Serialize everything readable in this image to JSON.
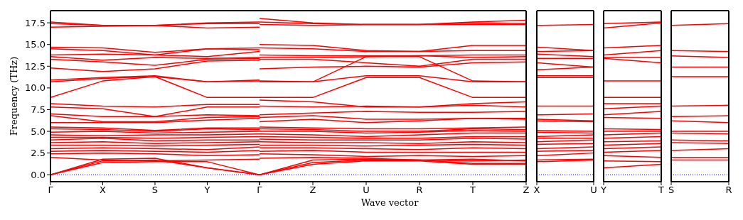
{
  "chart_data": [
    {
      "type": "line",
      "ylabel": "Frequency (THz)",
      "color": "#ff0000",
      "categories": [
        "Γ",
        "X",
        "S",
        "Y",
        "Γ"
      ],
      "ylim": [
        -0.8,
        18.9
      ],
      "yticks": [
        {
          "value": 0,
          "label": "0.0"
        },
        2.5,
        {
          "value": 5,
          "label": "5.0"
        },
        7.5,
        {
          "value": 10,
          "label": "10.0"
        },
        12.5,
        {
          "value": 15,
          "label": "15.0"
        },
        17.5
      ],
      "ref_lines": [
        {
          "axis": "y",
          "value": 0,
          "color": "#0000ff",
          "line_style": "dotted"
        }
      ],
      "series": [
        {
          "values": [
            17.6,
            17.2,
            17.2,
            17.5,
            17.6
          ]
        },
        {
          "values": [
            17.4,
            17.2,
            17.2,
            17.4,
            17.4
          ]
        },
        {
          "values": [
            17.0,
            17.1,
            17.2,
            16.9,
            17.0
          ]
        },
        {
          "values": [
            14.7,
            14.6,
            14.1,
            14.5,
            14.6
          ]
        },
        {
          "values": [
            14.5,
            14.3,
            13.8,
            14.5,
            14.4
          ]
        },
        {
          "values": [
            13.8,
            13.9,
            13.8,
            13.6,
            14.2
          ]
        },
        {
          "values": [
            13.6,
            13.2,
            13.5,
            13.4,
            13.5
          ]
        },
        {
          "values": [
            13.3,
            13.0,
            12.6,
            13.3,
            13.4
          ]
        },
        {
          "values": [
            12.3,
            11.9,
            12.2,
            13.1,
            13.2
          ]
        },
        {
          "values": [
            10.9,
            11.2,
            11.4,
            10.7,
            10.9
          ]
        },
        {
          "values": [
            10.7,
            11.1,
            11.3,
            10.7,
            10.8
          ]
        },
        {
          "values": [
            8.9,
            10.8,
            11.3,
            8.9,
            8.9
          ]
        },
        {
          "values": [
            8.2,
            7.9,
            7.8,
            8.1,
            8.1
          ]
        },
        {
          "values": [
            7.8,
            7.6,
            6.7,
            7.8,
            7.8
          ]
        },
        {
          "values": [
            7.0,
            6.7,
            6.7,
            6.9,
            6.8
          ]
        },
        {
          "values": [
            6.8,
            6.1,
            6.1,
            6.6,
            6.7
          ]
        },
        {
          "values": [
            6.0,
            6.0,
            6.0,
            6.3,
            6.5
          ]
        },
        {
          "values": [
            5.5,
            5.4,
            5.1,
            5.4,
            5.4
          ]
        },
        {
          "values": [
            5.3,
            5.2,
            5.0,
            5.3,
            5.2
          ]
        },
        {
          "values": [
            4.9,
            5.0,
            4.8,
            4.9,
            5.0
          ]
        },
        {
          "values": [
            4.6,
            4.5,
            4.6,
            4.6,
            4.7
          ]
        },
        {
          "values": [
            4.3,
            4.3,
            4.2,
            4.3,
            4.4
          ]
        },
        {
          "values": [
            4.0,
            4.2,
            3.9,
            4.0,
            4.0
          ]
        },
        {
          "values": [
            3.7,
            3.8,
            3.6,
            3.7,
            3.8
          ]
        },
        {
          "values": [
            3.4,
            3.4,
            3.3,
            3.4,
            3.5
          ]
        },
        {
          "values": [
            3.0,
            3.1,
            3.0,
            2.9,
            3.2
          ]
        },
        {
          "values": [
            2.7,
            2.8,
            2.7,
            2.6,
            2.8
          ]
        },
        {
          "values": [
            2.4,
            2.5,
            2.4,
            2.2,
            2.3
          ]
        },
        {
          "values": [
            2.0,
            1.7,
            1.6,
            1.7,
            1.8
          ]
        },
        {
          "values": [
            0.0,
            1.8,
            1.9,
            0.8,
            0.0
          ]
        },
        {
          "values": [
            0.0,
            1.6,
            1.7,
            0.8,
            0.0
          ]
        },
        {
          "values": [
            0.0,
            1.4,
            1.5,
            1.5,
            0.0
          ]
        }
      ]
    },
    {
      "type": "line",
      "xlabel": "Wave vector",
      "color": "#ff0000",
      "tick_labels": "x",
      "categories": [
        null,
        "Z",
        "U",
        "R",
        "T",
        "Z"
      ],
      "ylim": [
        -0.8,
        18.9
      ],
      "ref_lines": [
        {
          "axis": "y",
          "value": 0,
          "color": "#0000ff",
          "line_style": "dotted"
        }
      ],
      "series": [
        {
          "values": [
            18.0,
            17.5,
            17.3,
            17.3,
            17.6,
            17.8
          ]
        },
        {
          "values": [
            17.6,
            17.4,
            17.3,
            17.3,
            17.5,
            17.4
          ]
        },
        {
          "values": [
            17.3,
            17.2,
            17.3,
            17.3,
            17.3,
            17.3
          ]
        },
        {
          "values": [
            15.0,
            14.9,
            14.3,
            14.2,
            14.9,
            14.9
          ]
        },
        {
          "values": [
            14.6,
            14.5,
            14.2,
            14.2,
            14.3,
            14.3
          ]
        },
        {
          "values": [
            13.8,
            13.7,
            13.7,
            13.7,
            13.8,
            13.8
          ]
        },
        {
          "values": [
            13.5,
            13.5,
            13.6,
            13.7,
            13.5,
            13.6
          ]
        },
        {
          "values": [
            13.3,
            13.3,
            12.9,
            12.5,
            13.3,
            13.3
          ]
        },
        {
          "values": [
            12.2,
            12.4,
            12.5,
            12.4,
            12.9,
            13.0
          ]
        },
        {
          "values": [
            10.8,
            10.7,
            13.6,
            13.6,
            10.8,
            10.7
          ]
        },
        {
          "values": [
            10.7,
            10.7,
            11.4,
            11.4,
            10.7,
            10.7
          ]
        },
        {
          "values": [
            8.9,
            8.9,
            11.2,
            11.2,
            8.9,
            8.9
          ]
        },
        {
          "values": [
            8.6,
            8.4,
            7.8,
            7.8,
            8.2,
            8.4
          ]
        },
        {
          "values": [
            7.9,
            7.8,
            7.9,
            7.8,
            8.0,
            7.8
          ]
        },
        {
          "values": [
            6.9,
            7.1,
            7.3,
            7.2,
            7.2,
            7.3
          ]
        },
        {
          "values": [
            6.6,
            6.8,
            6.4,
            6.4,
            6.5,
            6.5
          ]
        },
        {
          "values": [
            6.1,
            6.4,
            6.0,
            6.2,
            6.5,
            6.4
          ]
        },
        {
          "values": [
            5.5,
            5.4,
            5.3,
            5.3,
            5.4,
            5.5
          ]
        },
        {
          "values": [
            5.3,
            5.2,
            5.0,
            5.0,
            5.3,
            5.2
          ]
        },
        {
          "values": [
            5.0,
            5.0,
            4.8,
            4.9,
            5.1,
            5.0
          ]
        },
        {
          "values": [
            4.7,
            4.6,
            4.4,
            4.6,
            4.8,
            4.8
          ]
        },
        {
          "values": [
            4.4,
            4.3,
            4.2,
            4.2,
            4.4,
            4.4
          ]
        },
        {
          "values": [
            4.1,
            4.0,
            4.0,
            4.0,
            4.2,
            4.1
          ]
        },
        {
          "values": [
            3.8,
            3.7,
            3.7,
            3.6,
            3.8,
            3.7
          ]
        },
        {
          "values": [
            3.4,
            3.4,
            3.3,
            3.4,
            3.5,
            3.4
          ]
        },
        {
          "values": [
            3.1,
            3.1,
            3.0,
            2.9,
            3.1,
            3.0
          ]
        },
        {
          "values": [
            2.7,
            2.8,
            2.6,
            2.6,
            2.6,
            2.6
          ]
        },
        {
          "values": [
            2.4,
            2.3,
            2.1,
            2.2,
            2.1,
            2.2
          ]
        },
        {
          "values": [
            1.9,
            2.0,
            1.9,
            1.7,
            1.6,
            1.7
          ]
        },
        {
          "values": [
            0.0,
            1.7,
            1.8,
            1.7,
            1.8,
            1.6
          ]
        },
        {
          "values": [
            0.0,
            1.4,
            1.7,
            1.7,
            1.3,
            1.3
          ]
        },
        {
          "values": [
            0.0,
            1.2,
            1.6,
            1.6,
            1.2,
            1.2
          ]
        }
      ]
    },
    {
      "type": "line",
      "color": "#ff0000",
      "tick_labels": "x",
      "categories": [
        "X",
        "U"
      ],
      "ylim": [
        -0.8,
        18.9
      ],
      "ref_lines": [
        {
          "axis": "y",
          "value": 0,
          "color": "#0000ff",
          "line_style": "dotted"
        }
      ],
      "series": [
        {
          "values": [
            17.2,
            17.3
          ]
        },
        {
          "values": [
            14.7,
            14.3
          ]
        },
        {
          "values": [
            14.2,
            14.3
          ]
        },
        {
          "values": [
            13.9,
            13.6
          ]
        },
        {
          "values": [
            13.4,
            13.4
          ]
        },
        {
          "values": [
            12.9,
            12.4
          ]
        },
        {
          "values": [
            12.1,
            12.4
          ]
        },
        {
          "values": [
            11.4,
            11.4
          ]
        },
        {
          "values": [
            11.2,
            11.2
          ]
        },
        {
          "values": [
            7.9,
            7.9
          ]
        },
        {
          "values": [
            6.9,
            7.0
          ]
        },
        {
          "values": [
            6.4,
            6.2
          ]
        },
        {
          "values": [
            6.2,
            6.1
          ]
        },
        {
          "values": [
            5.1,
            5.0
          ]
        },
        {
          "values": [
            4.9,
            4.8
          ]
        },
        {
          "values": [
            4.4,
            4.6
          ]
        },
        {
          "values": [
            4.2,
            4.2
          ]
        },
        {
          "values": [
            3.8,
            4.0
          ]
        },
        {
          "values": [
            3.5,
            3.6
          ]
        },
        {
          "values": [
            3.0,
            3.2
          ]
        },
        {
          "values": [
            2.7,
            2.8
          ]
        },
        {
          "values": [
            2.2,
            2.5
          ]
        },
        {
          "values": [
            1.7,
            1.8
          ]
        },
        {
          "values": [
            1.5,
            1.7
          ]
        }
      ]
    },
    {
      "type": "line",
      "color": "#ff0000",
      "tick_labels": "x",
      "categories": [
        "Y",
        "T"
      ],
      "ylim": [
        -0.8,
        18.9
      ],
      "ref_lines": [
        {
          "axis": "y",
          "value": 0,
          "color": "#0000ff",
          "line_style": "dotted"
        }
      ],
      "series": [
        {
          "values": [
            17.4,
            17.6
          ]
        },
        {
          "values": [
            16.9,
            17.5
          ]
        },
        {
          "values": [
            14.6,
            14.9
          ]
        },
        {
          "values": [
            13.8,
            14.3
          ]
        },
        {
          "values": [
            13.5,
            13.5
          ]
        },
        {
          "values": [
            13.4,
            12.9
          ]
        },
        {
          "values": [
            10.8,
            10.8
          ]
        },
        {
          "values": [
            8.9,
            8.9
          ]
        },
        {
          "values": [
            8.2,
            8.2
          ]
        },
        {
          "values": [
            7.6,
            7.9
          ]
        },
        {
          "values": [
            6.9,
            7.3
          ]
        },
        {
          "values": [
            6.6,
            6.5
          ]
        },
        {
          "values": [
            5.3,
            5.2
          ]
        },
        {
          "values": [
            5.0,
            5.0
          ]
        },
        {
          "values": [
            4.6,
            4.8
          ]
        },
        {
          "values": [
            4.2,
            4.4
          ]
        },
        {
          "values": [
            3.8,
            3.9
          ]
        },
        {
          "values": [
            3.4,
            3.6
          ]
        },
        {
          "values": [
            3.0,
            3.2
          ]
        },
        {
          "values": [
            2.6,
            2.8
          ]
        },
        {
          "values": [
            2.2,
            2.0
          ]
        },
        {
          "values": [
            1.6,
            1.5
          ]
        },
        {
          "values": [
            0.8,
            1.2
          ]
        }
      ]
    },
    {
      "type": "line",
      "color": "#ff0000",
      "tick_labels": "x",
      "categories": [
        "S",
        "R"
      ],
      "ylim": [
        -0.8,
        18.9
      ],
      "ref_lines": [
        {
          "axis": "y",
          "value": 0,
          "color": "#0000ff",
          "line_style": "dotted"
        }
      ],
      "series": [
        {
          "values": [
            17.2,
            17.4
          ]
        },
        {
          "values": [
            14.3,
            14.2
          ]
        },
        {
          "values": [
            13.7,
            13.5
          ]
        },
        {
          "values": [
            12.4,
            12.4
          ]
        },
        {
          "values": [
            11.3,
            11.3
          ]
        },
        {
          "values": [
            7.9,
            8.0
          ]
        },
        {
          "values": [
            6.7,
            6.8
          ]
        },
        {
          "values": [
            6.2,
            6.0
          ]
        },
        {
          "values": [
            5.0,
            5.0
          ]
        },
        {
          "values": [
            4.8,
            4.7
          ]
        },
        {
          "values": [
            4.0,
            3.9
          ]
        },
        {
          "values": [
            3.7,
            3.6
          ]
        },
        {
          "values": [
            2.8,
            3.0
          ]
        },
        {
          "values": [
            2.0,
            2.0
          ]
        },
        {
          "values": [
            1.7,
            1.7
          ]
        }
      ]
    }
  ]
}
